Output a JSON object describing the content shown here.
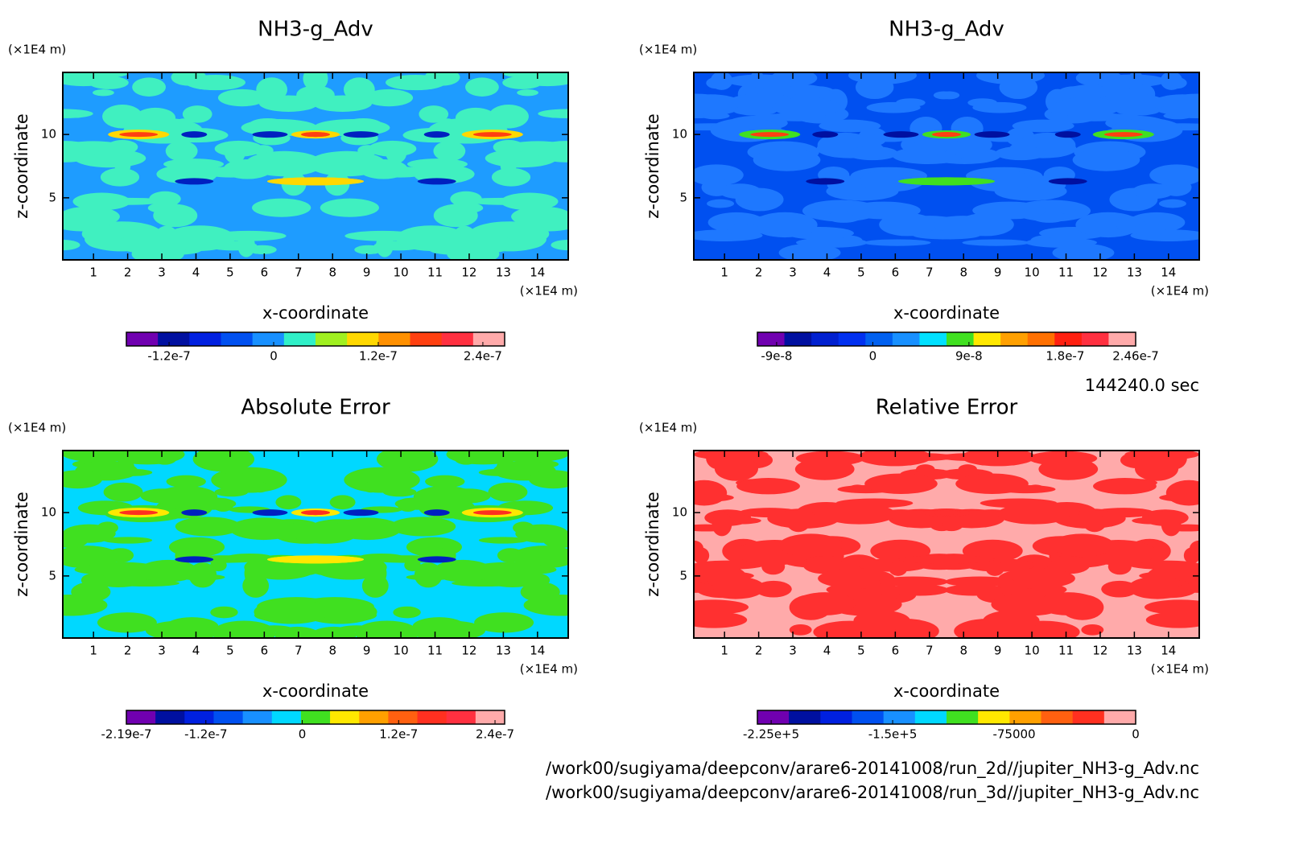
{
  "chart_data": [
    {
      "type": "contour",
      "title": "NH3-g_Adv",
      "xlabel": "x-coordinate",
      "ylabel": "z-coordinate",
      "xunit": "(×1E4 m)",
      "yunit": "(×1E4 m)",
      "xlim": [
        0.1,
        14.9
      ],
      "ylim": [
        0.1,
        14.9
      ],
      "xticks": [
        1,
        2,
        3,
        4,
        5,
        6,
        7,
        8,
        9,
        10,
        11,
        12,
        13,
        14
      ],
      "yticks": [
        5,
        10
      ],
      "colorbar": {
        "clim": [
          -1.69e-07,
          2.65e-07
        ],
        "colors": [
          "#7000b0",
          "#0010a0",
          "#0020e0",
          "#0050f0",
          "#1890ff",
          "#30f0c8",
          "#a0f020",
          "#ffd800",
          "#ff9000",
          "#ff4010",
          "#ff3040",
          "#ffaaaa"
        ],
        "ticks": [
          {
            "value": -1.2e-07,
            "label": "-1.2e-7"
          },
          0,
          {
            "value": 1.2e-07,
            "label": "1.2e-7"
          },
          {
            "value": 2.4e-07,
            "label": "2.4e-7"
          }
        ]
      }
    },
    {
      "type": "contour",
      "title": "NH3-g_Adv",
      "xlabel": "x-coordinate",
      "ylabel": "z-coordinate",
      "xunit": "(×1E4 m)",
      "yunit": "(×1E4 m)",
      "xlim": [
        0.1,
        14.9
      ],
      "ylim": [
        0.1,
        14.9
      ],
      "xticks": [
        1,
        2,
        3,
        4,
        5,
        6,
        7,
        8,
        9,
        10,
        11,
        12,
        13,
        14
      ],
      "yticks": [
        5,
        10
      ],
      "colorbar": {
        "clim": [
          -1.08e-07,
          2.46e-07
        ],
        "colors": [
          "#7000b0",
          "#0010a0",
          "#0020d0",
          "#0030f0",
          "#0060f0",
          "#1890ff",
          "#00e0ff",
          "#40e020",
          "#ffe800",
          "#ffa000",
          "#ff7000",
          "#ff2010",
          "#ff3040",
          "#ffaaaa"
        ],
        "ticks": [
          {
            "value": -9e-08,
            "label": "-9e-8"
          },
          0,
          {
            "value": 9e-08,
            "label": "9e-8"
          },
          {
            "value": 1.8e-07,
            "label": "1.8e-7"
          },
          {
            "value": 2.46e-07,
            "label": "2.46e-7"
          }
        ]
      }
    },
    {
      "type": "contour",
      "title": "Absolute Error",
      "xlabel": "x-coordinate",
      "ylabel": "z-coordinate",
      "xunit": "(×1E4 m)",
      "yunit": "(×1E4 m)",
      "xlim": [
        0.1,
        14.9
      ],
      "ylim": [
        0.1,
        14.9
      ],
      "xticks": [
        1,
        2,
        3,
        4,
        5,
        6,
        7,
        8,
        9,
        10,
        11,
        12,
        13,
        14
      ],
      "yticks": [
        5,
        10
      ],
      "colorbar": {
        "clim": [
          -2.19e-07,
          2.52e-07
        ],
        "colors": [
          "#7000b0",
          "#0010a0",
          "#0020e0",
          "#0050f0",
          "#1890ff",
          "#00d8ff",
          "#40e020",
          "#ffe800",
          "#ffa000",
          "#ff6010",
          "#ff3020",
          "#ff3040",
          "#ffaaaa"
        ],
        "ticks": [
          {
            "value": -2.19e-07,
            "label": "-2.19e-7"
          },
          {
            "value": -1.2e-07,
            "label": "-1.2e-7"
          },
          0,
          {
            "value": 1.2e-07,
            "label": "1.2e-7"
          },
          {
            "value": 2.4e-07,
            "label": "2.4e-7"
          }
        ]
      }
    },
    {
      "type": "contour",
      "title": "Relative Error",
      "xlabel": "x-coordinate",
      "ylabel": "z-coordinate",
      "xunit": "(×1E4 m)",
      "yunit": "(×1E4 m)",
      "xlim": [
        0.1,
        14.9
      ],
      "ylim": [
        0.1,
        14.9
      ],
      "xticks": [
        1,
        2,
        3,
        4,
        5,
        6,
        7,
        8,
        9,
        10,
        11,
        12,
        13,
        14
      ],
      "yticks": [
        5,
        10
      ],
      "colorbar": {
        "clim": [
          -233500.0,
          0
        ],
        "colors": [
          "#7000b0",
          "#0010a0",
          "#0020e0",
          "#0050f0",
          "#1890ff",
          "#00d8ff",
          "#40e020",
          "#ffe800",
          "#ffa000",
          "#ff6010",
          "#ff3020",
          "#ffaaaa"
        ],
        "ticks": [
          {
            "value": -225000.0,
            "label": "-2.25e+5"
          },
          {
            "value": -150000.0,
            "label": "-1.5e+5"
          },
          -75000,
          0
        ]
      }
    }
  ],
  "time": "144240.0 sec",
  "files": [
    "/work00/sugiyama/deepconv/arare6-20141008/run_2d//jupiter_NH3-g_Adv.nc",
    "/work00/sugiyama/deepconv/arare6-20141008/run_3d//jupiter_NH3-g_Adv.nc"
  ]
}
